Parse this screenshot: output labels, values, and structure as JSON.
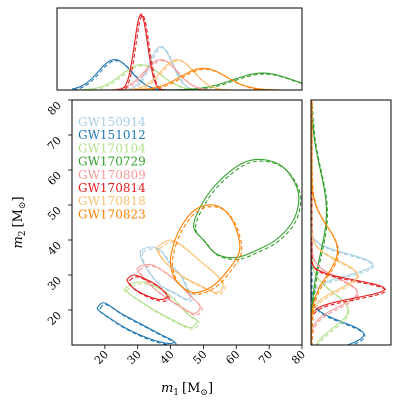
{
  "chart_data": {
    "type": "scatter",
    "subtype": "corner-plot-contours-with-marginals",
    "xlabel": "m_1 [M_⊙]",
    "ylabel": "m_2 [M_⊙]",
    "xlabel_parts": {
      "sym": "m",
      "sub": "1",
      "unit": "[M",
      "unit_sub": "⊙",
      "close": "]"
    },
    "ylabel_parts": {
      "sym": "m",
      "sub": "2",
      "unit": "[M",
      "unit_sub": "⊙",
      "close": "]"
    },
    "xlim": [
      10,
      80
    ],
    "ylim": [
      10,
      80
    ],
    "xticks": [
      "20",
      "30",
      "40",
      "50",
      "60",
      "70",
      "80"
    ],
    "yticks": [
      "20",
      "30",
      "40",
      "50",
      "60",
      "70",
      "80"
    ],
    "legend_position": "top-left",
    "grid": false,
    "series": [
      {
        "name": "GW150914",
        "color": "#a6cee3",
        "contour": [
          [
            31,
            37
          ],
          [
            34,
            38
          ],
          [
            37,
            37
          ],
          [
            40,
            33
          ],
          [
            43,
            30
          ],
          [
            45,
            26
          ],
          [
            46,
            24
          ],
          [
            45,
            23
          ],
          [
            41,
            25
          ],
          [
            37,
            27
          ],
          [
            34,
            30
          ],
          [
            32,
            33
          ],
          [
            31,
            35
          ]
        ],
        "m1_peak": 37,
        "m1_width": 3.5,
        "m2_peak": 33,
        "m2_width": 3
      },
      {
        "name": "GW151012",
        "color": "#1f78b4",
        "contour": [
          [
            18,
            21
          ],
          [
            20,
            22
          ],
          [
            25,
            19
          ],
          [
            31,
            16
          ],
          [
            37,
            13
          ],
          [
            41,
            11
          ],
          [
            39,
            10.5
          ],
          [
            33,
            12
          ],
          [
            26,
            15
          ],
          [
            21,
            18
          ],
          [
            18,
            20
          ]
        ],
        "m1_peak": 23,
        "m1_width": 5,
        "m2_peak": 13,
        "m2_width": 3.5
      },
      {
        "name": "GW170104",
        "color": "#b2df8a",
        "contour": [
          [
            26,
            26
          ],
          [
            30,
            28
          ],
          [
            35,
            27
          ],
          [
            40,
            24
          ],
          [
            45,
            19
          ],
          [
            48,
            17
          ],
          [
            46,
            15
          ],
          [
            41,
            17
          ],
          [
            35,
            20
          ],
          [
            30,
            23
          ],
          [
            27,
            25
          ]
        ],
        "m1_peak": 31,
        "m1_width": 6,
        "m2_peak": 20,
        "m2_width": 5
      },
      {
        "name": "GW170729",
        "color": "#33a02c",
        "contour": [
          [
            47,
            44
          ],
          [
            50,
            51
          ],
          [
            55,
            57
          ],
          [
            62,
            62
          ],
          [
            68,
            63
          ],
          [
            74,
            61
          ],
          [
            78,
            56
          ],
          [
            79,
            51
          ],
          [
            77,
            45
          ],
          [
            72,
            40
          ],
          [
            66,
            37
          ],
          [
            60,
            35
          ],
          [
            54,
            36
          ],
          [
            50,
            40
          ]
        ],
        "m1_peak": 68,
        "m1_width": 9,
        "m2_peak": 48,
        "m2_width": 12
      },
      {
        "name": "GW170809",
        "color": "#fb9a99",
        "contour": [
          [
            30,
            32
          ],
          [
            34,
            33
          ],
          [
            38,
            31
          ],
          [
            42,
            28
          ],
          [
            46,
            24
          ],
          [
            49,
            21
          ],
          [
            47,
            19
          ],
          [
            43,
            21
          ],
          [
            38,
            24
          ],
          [
            34,
            27
          ],
          [
            31,
            30
          ]
        ],
        "m1_peak": 37,
        "m1_width": 5,
        "m2_peak": 25,
        "m2_width": 4
      },
      {
        "name": "GW170814",
        "color": "#e31a1c",
        "contour": [
          [
            27,
            29
          ],
          [
            29,
            30
          ],
          [
            32,
            29
          ],
          [
            36,
            27
          ],
          [
            39,
            24
          ],
          [
            37,
            23
          ],
          [
            33,
            24
          ],
          [
            29,
            26
          ],
          [
            27,
            28
          ]
        ],
        "m1_peak": 31,
        "m1_width": 2,
        "m2_peak": 26,
        "m2_width": 2.5
      },
      {
        "name": "GW170818",
        "color": "#fdbf6f",
        "contour": [
          [
            36,
            38
          ],
          [
            40,
            40
          ],
          [
            44,
            38
          ],
          [
            49,
            34
          ],
          [
            54,
            30
          ],
          [
            56,
            27
          ],
          [
            54,
            25
          ],
          [
            49,
            27
          ],
          [
            43,
            30
          ],
          [
            38,
            34
          ],
          [
            36,
            37
          ]
        ],
        "m1_peak": 42,
        "m1_width": 5,
        "m2_peak": 30,
        "m2_width": 4
      },
      {
        "name": "GW170823",
        "color": "#ff7f00",
        "contour": [
          [
            41,
            39
          ],
          [
            44,
            45
          ],
          [
            48,
            49
          ],
          [
            53,
            50
          ],
          [
            57,
            48
          ],
          [
            60,
            43
          ],
          [
            61,
            37
          ],
          [
            58,
            32
          ],
          [
            53,
            27
          ],
          [
            47,
            25
          ],
          [
            42,
            28
          ],
          [
            40,
            33
          ]
        ],
        "m1_peak": 50,
        "m1_width": 7,
        "m2_peak": 37,
        "m2_width": 7
      }
    ]
  }
}
